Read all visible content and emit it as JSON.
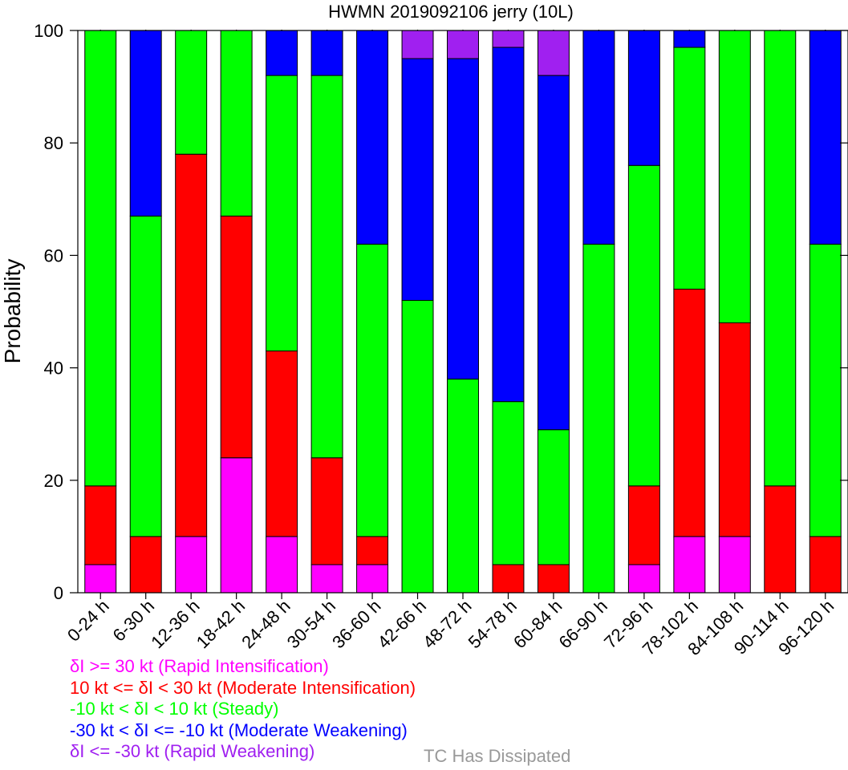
{
  "chart_data": {
    "type": "bar",
    "stacked": true,
    "title": "HWMN 2019092106 jerry (10L)",
    "ylabel": "Probability",
    "xlabel": "",
    "ylim": [
      0,
      100
    ],
    "yticks": [
      0,
      20,
      40,
      60,
      80,
      100
    ],
    "categories": [
      "0-24 h",
      "6-30 h",
      "12-36 h",
      "18-42 h",
      "24-48 h",
      "30-54 h",
      "36-60 h",
      "42-66 h",
      "48-72 h",
      "54-78 h",
      "60-84 h",
      "66-90 h",
      "72-96 h",
      "78-102 h",
      "84-108 h",
      "90-114 h",
      "96-120 h"
    ],
    "series": [
      {
        "name": "δI >= 30 kt (Rapid Intensification)",
        "color": "#ff00ff",
        "values": [
          5,
          0,
          10,
          24,
          10,
          5,
          5,
          0,
          0,
          0,
          0,
          0,
          5,
          10,
          10,
          0,
          0
        ]
      },
      {
        "name": "10 kt <= δI < 30 kt (Moderate Intensification)",
        "color": "#ff0000",
        "values": [
          14,
          10,
          68,
          43,
          33,
          19,
          5,
          0,
          0,
          5,
          5,
          0,
          14,
          44,
          38,
          19,
          10
        ]
      },
      {
        "name": "-10 kt < δI < 10 kt (Steady)",
        "color": "#00ff00",
        "values": [
          81,
          57,
          22,
          33,
          49,
          68,
          52,
          52,
          38,
          29,
          24,
          62,
          57,
          43,
          52,
          81,
          52
        ]
      },
      {
        "name": "-30 kt < δI <= -10 kt (Moderate Weakening)",
        "color": "#0000ff",
        "values": [
          0,
          33,
          0,
          0,
          8,
          8,
          38,
          43,
          57,
          63,
          63,
          38,
          24,
          3,
          0,
          0,
          38
        ]
      },
      {
        "name": "δI <= -30 kt (Rapid Weakening)",
        "color": "#a020f0",
        "values": [
          0,
          0,
          0,
          0,
          0,
          0,
          0,
          5,
          5,
          3,
          8,
          0,
          0,
          0,
          0,
          0,
          0
        ]
      }
    ],
    "grid": false,
    "legend_position": "bottom-left",
    "extra_legend": {
      "label": "TC Has Dissipated",
      "color": "#999999"
    }
  }
}
